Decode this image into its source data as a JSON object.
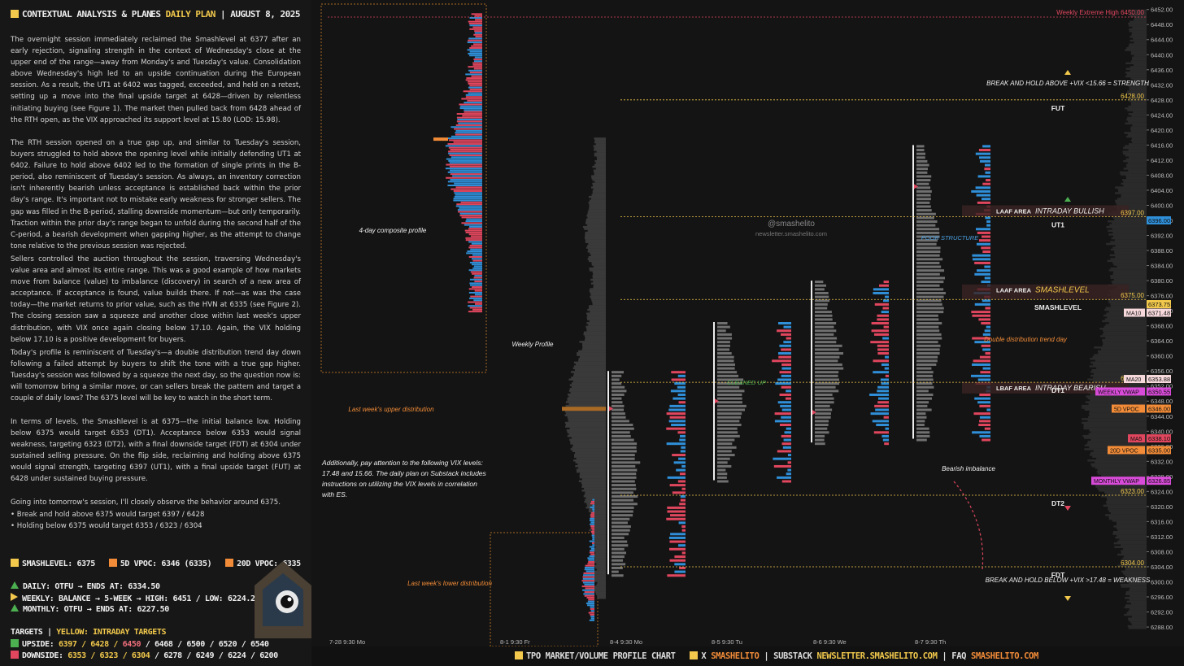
{
  "header": {
    "title": "CONTEXTUAL ANALYSIS & PLAN",
    "instrument": "ES",
    "plan": "DAILY PLAN",
    "date": "AUGUST 8, 2025"
  },
  "paragraphs": [
    "The overnight session immediately reclaimed the Smashlevel at 6377 after an early rejection, signaling strength in the context of Wednesday's close at the upper end of the range—away from Monday's and Tuesday's value. Consolidation above Wednesday's high led to an upside continuation during the European session. As a result, the UT1 at 6402 was tagged, exceeded, and held on a retest, setting up a move into the final upside target at 6428—driven by relentless initiating buying (see Figure 1). The market then pulled back from 6428 ahead of the RTH open, as the VIX approached its support level at 15.80 (LOD: 15.98).",
    "The RTH session opened on a true gap up, and similar to Tuesday's session, buyers struggled to hold above the opening level while initially defending UT1 at 6402. Failure to hold above 6402 led to the formation of single prints in the B-period, also reminiscent of Tuesday's session. As always, an inventory correction isn't inherently bearish unless acceptance is established back within the prior day's range. It's important not to mistake early weakness for stronger sellers. The gap was filled in the B-period, stalling downside momentum—but only temporarily. Traction within the prior day's range began to unfold during the second half of the C-period, a bearish development when gapping higher, as the attempt to change tone relative to the previous session was rejected.",
    "Sellers controlled the auction throughout the session, traversing Wednesday's value area and almost its entire range. This was a good example of how markets move from balance (value) to imbalance (discovery) in search of a new area of acceptance. If acceptance is found, value builds there. If not—as was the case today—the market returns to prior value, such as the HVN at 6335 (see Figure 2). The closing session saw a squeeze and another close within last week's upper distribution, with VIX once again closing below 17.10. Again, the VIX holding below 17.10 is a positive development for buyers.",
    "Today's profile is reminiscent of Tuesday's—a double distribution trend day down following a failed attempt by buyers to shift the tone with a true gap higher. Tuesday's session was followed by a squeeze the next day, so the question now is: will tomorrow bring a similar move, or can sellers break the pattern and target a couple of daily lows? The 6375 level will be key to watch in the short term.",
    "In terms of levels, the Smashlevel is at 6375—the initial balance low. Holding below 6375 would target 6353 (DT1). Acceptance below 6353 would signal weakness, targeting 6323 (DT2), with a final downside target (FDT) at 6304 under sustained selling pressure. On the flip side, reclaiming and holding above 6375 would signal strength, targeting 6397 (UT1), with a final upside target (FUT) at 6428 under sustained buying pressure.",
    "Going into tomorrow's session, I'll closely observe the behavior around 6375.",
    "• Break and hold above 6375 would target 6397 / 6428",
    "• Holding below 6375 would target 6353 / 6323 / 6304"
  ],
  "levels_legend": {
    "smashlevel": "SMASHLEVEL: 6375",
    "vpoc5d": "5D VPOC: 6346 (6335)",
    "vpoc20d": "20D VPOC: 6335"
  },
  "status": {
    "daily": "DAILY: OTFU → ENDS AT: 6334.50",
    "weekly": "WEEKLY: BALANCE → 5-WEEK → HIGH: 6451 / LOW: 6224.25",
    "monthly": "MONTHLY: OTFU → ENDS AT: 6227.50"
  },
  "targets": {
    "title": "TARGETS",
    "title_sep": "|",
    "title_yellow": "YELLOW: INTRADAY TARGETS",
    "upside_label": "UPSIDE:",
    "upside_y": "6397 / 6428 /",
    "upside_p": "6450",
    "upside_rest": "/ 6468 / 6500 / 6520 / 6540",
    "downside_label": "DOWNSIDE:",
    "downside_y": "6353 / 6323 / 6304",
    "downside_rest": "/ 6278 / 6249 / 6224 / 6200"
  },
  "colors": {
    "gold": "#f2c94c",
    "green": "#4caf50",
    "orange": "#f28c38",
    "blue": "#2f8fd8",
    "red": "#e0465e",
    "pink": "#ef6f7c",
    "magenta": "#d84bd8"
  },
  "chart_data": {
    "type": "tpo_profile",
    "watermark": "@smashelito",
    "watermark_sub": "newsletter.smashelito.com",
    "y_ticks": [
      6452,
      6448,
      6444,
      6440,
      6436,
      6432,
      6428,
      6424,
      6420,
      6416,
      6412,
      6408,
      6404,
      6400,
      6396,
      6392,
      6388,
      6384,
      6380,
      6376,
      6372,
      6368,
      6364,
      6360,
      6356,
      6352,
      6348,
      6344,
      6340,
      6336,
      6332,
      6328,
      6324,
      6320,
      6316,
      6312,
      6308,
      6304,
      6300,
      6296,
      6292,
      6288
    ],
    "y_tick_decimals": 2,
    "ylim": [
      6286.5,
      6452.8
    ],
    "x_labels": [
      "7-28  9:30 Mo",
      "8-1  9:30 Fr",
      "8-4  9:30 Mo",
      "8-5  9:30 Tu",
      "8-6  9:30 We",
      "8-7  9:30 Th"
    ],
    "levels": [
      {
        "name": "Weekly Extreme High",
        "value": 6450,
        "label": "Weekly Extreme High  6450.00",
        "color": "#e0465e"
      },
      {
        "name": "FUT",
        "value": 6428,
        "price": "6428.00",
        "color": "#f2c94c"
      },
      {
        "name": "UT1",
        "value": 6397,
        "price": "6397.00",
        "color": "#f2c94c"
      },
      {
        "name": "SMASHLEVEL",
        "value": 6375,
        "price": "6375.00",
        "color": "#f2c94c"
      },
      {
        "name": "DT1",
        "value": 6353,
        "price": "6353.00",
        "color": "#f2c94c"
      },
      {
        "name": "DT2",
        "value": 6323,
        "price": "6323.00",
        "color": "#f2c94c"
      },
      {
        "name": "FDT",
        "value": 6304,
        "price": "6304.00",
        "color": "#f2c94c"
      }
    ],
    "tags": [
      {
        "text": "6396.00",
        "value": 6396,
        "color": "#2f8fd8"
      },
      {
        "text": "6373.75",
        "value": 6373.75,
        "color": "#f2c94c"
      },
      {
        "text": "6371.48",
        "value": 6371.48,
        "label": "MA10",
        "color": "#f7d9dc"
      },
      {
        "text": "6353.88",
        "value": 6353.88,
        "label": "MA20",
        "color": "#f7d9dc"
      },
      {
        "text": "6350.55",
        "value": 6350.55,
        "label": "WEEKLY VWAP",
        "color": "#d84bd8"
      },
      {
        "text": "6346.00",
        "value": 6346,
        "label": "5D VPOC",
        "color": "#f28c38"
      },
      {
        "text": "6338.10",
        "value": 6338.1,
        "label": "MA5",
        "color": "#e0465e"
      },
      {
        "text": "6335.00",
        "value": 6335,
        "label": "20D VPOC",
        "color": "#f28c38"
      },
      {
        "text": "6326.85",
        "value": 6326.85,
        "label": "MONTHLY VWAP",
        "color": "#d84bd8"
      }
    ],
    "areas": [
      {
        "label": "LAAF AREA",
        "text": "INTRADAY BULLISH",
        "from": 6397,
        "to": 6400
      },
      {
        "label": "LAAF AREA",
        "text": "SMASHLEVEL",
        "from": 6375,
        "to": 6379
      },
      {
        "label": "LBAF AREA",
        "text": "INTRADAY BEARISH",
        "from": 6350,
        "to": 6353
      }
    ],
    "annotations": [
      "4-day composite profile",
      "Last week's upper distribution",
      "Last week's lower distribution",
      "Weekly Profile",
      "CLEANED UP",
      "POOR STRUCTURE",
      "Double distribution trend day",
      "Bearish imbalance",
      "BREAK AND HOLD ABOVE +VIX <15.66 = STRENGTH",
      "BREAK AND HOLD BELOW +VIX >17.48 = WEAKNESS"
    ],
    "note": "Additionally, pay attention to the following VIX levels: 17.48 and 15.66. The daily plan on Substack includes instructions on utilizing the VIX levels in correlation with ES.",
    "sessions": [
      {
        "date": "8-4",
        "high": 6356,
        "low": 6302,
        "open": 6346
      },
      {
        "date": "8-5",
        "high": 6369,
        "low": 6327,
        "open": 6348
      },
      {
        "date": "8-6",
        "high": 6380,
        "low": 6337,
        "open": 6345
      },
      {
        "date": "8-7",
        "high": 6416,
        "low": 6338,
        "open": 6405
      }
    ]
  },
  "footer": {
    "chart_name": "TPO MARKET/VOLUME PROFILE CHART",
    "x_label": "X",
    "x_handle": "SMASHELITO",
    "substack_label": "SUBSTACK",
    "substack_url": "NEWSLETTER.SMASHELITO.COM",
    "faq_label": "FAQ",
    "faq_url": "SMASHELITO.COM"
  }
}
